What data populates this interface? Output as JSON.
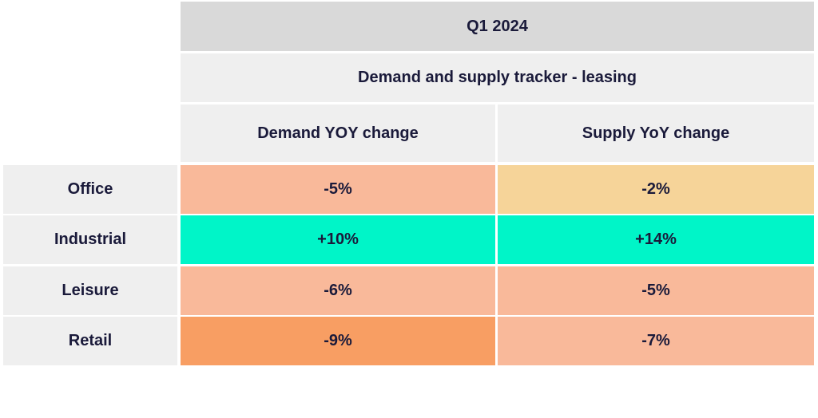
{
  "chart_data": {
    "type": "table",
    "title": "Q1 2024",
    "subtitle": "Demand and supply tracker - leasing",
    "columns": [
      "Demand YOY change",
      "Supply YoY change"
    ],
    "rows": [
      {
        "label": "Office",
        "values": [
          "-5%",
          "-2%"
        ],
        "colors": [
          "#f9b99a",
          "#f6d499"
        ]
      },
      {
        "label": "Industrial",
        "values": [
          "+10%",
          "+14%"
        ],
        "colors": [
          "#00f5c8",
          "#00f5c8"
        ]
      },
      {
        "label": "Leisure",
        "values": [
          "-6%",
          "-5%"
        ],
        "colors": [
          "#f9b99a",
          "#f9b99a"
        ]
      },
      {
        "label": "Retail",
        "values": [
          "-9%",
          "-7%"
        ],
        "colors": [
          "#f89e63",
          "#f9b99a"
        ]
      }
    ]
  },
  "colors": {
    "header_dark": "#d9d9d9",
    "header_light": "#efefef",
    "text": "#1a1a3a"
  }
}
